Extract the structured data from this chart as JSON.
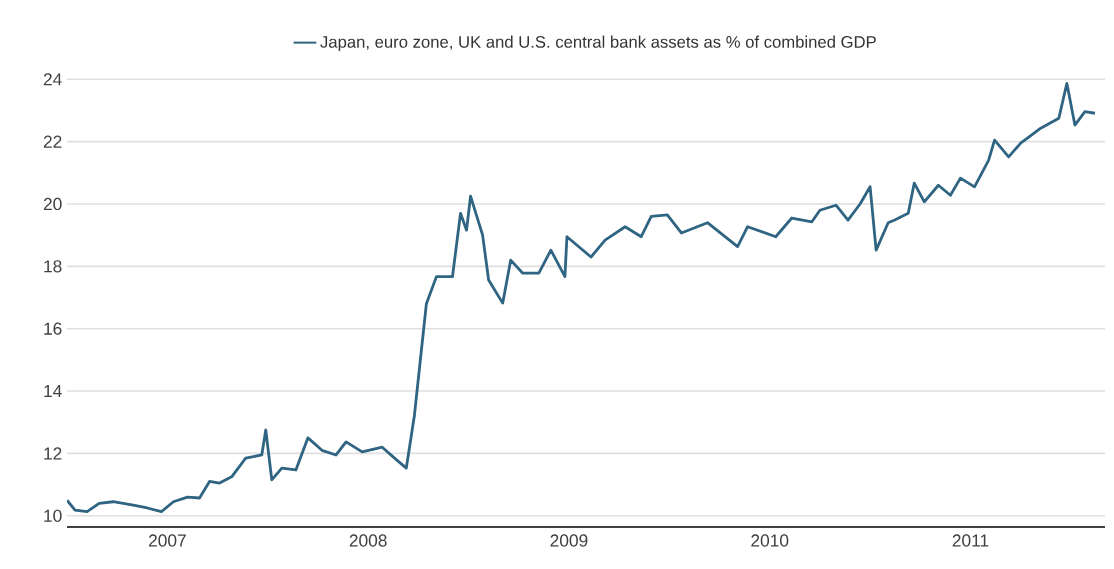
{
  "chart_data": {
    "type": "line",
    "legend": "top",
    "grid": "y",
    "marker": "none",
    "line_style": "solid",
    "xlim": [
      2007,
      2012.17
    ],
    "ylim": [
      9.64,
      24
    ],
    "xticks": [
      {
        "value": 2007,
        "label": null
      },
      {
        "value": 2007.5,
        "label": "2007"
      },
      {
        "value": 2008,
        "label": null
      },
      {
        "value": 2008.5,
        "label": "2008"
      },
      {
        "value": 2009,
        "label": null
      },
      {
        "value": 2009.5,
        "label": "2009"
      },
      {
        "value": 2010,
        "label": null
      },
      {
        "value": 2010.5,
        "label": "2010"
      },
      {
        "value": 2011,
        "label": null
      },
      {
        "value": 2011.5,
        "label": "2011"
      },
      {
        "value": 2012,
        "label": null
      }
    ],
    "yticks": [
      10,
      12,
      14,
      16,
      18,
      20,
      22,
      24
    ],
    "series": [
      {
        "name": "Japan, euro zone, UK and U.S. central bank assets as % of combined GDP",
        "color": "#2f6482",
        "x": [
          2007.0,
          2007.04,
          2007.1,
          2007.16,
          2007.23,
          2007.33,
          2007.4,
          2007.47,
          2007.53,
          2007.6,
          2007.66,
          2007.71,
          2007.76,
          2007.82,
          2007.89,
          2007.97,
          2007.99,
          2008.02,
          2008.07,
          2008.14,
          2008.2,
          2008.27,
          2008.34,
          2008.39,
          2008.47,
          2008.57,
          2008.64,
          2008.69,
          2008.73,
          2008.76,
          2008.79,
          2008.84,
          2008.92,
          2008.96,
          2008.99,
          2009.01,
          2009.07,
          2009.1,
          2009.17,
          2009.21,
          2009.27,
          2009.35,
          2009.41,
          2009.48,
          2009.49,
          2009.61,
          2009.68,
          2009.78,
          2009.86,
          2009.91,
          2009.99,
          2010.06,
          2010.19,
          2010.34,
          2010.39,
          2010.53,
          2010.61,
          2010.71,
          2010.75,
          2010.83,
          2010.89,
          2010.95,
          2011.0,
          2011.03,
          2011.09,
          2011.12,
          2011.19,
          2011.22,
          2011.27,
          2011.34,
          2011.4,
          2011.45,
          2011.52,
          2011.59,
          2011.62,
          2011.69,
          2011.75,
          2011.85,
          2011.94,
          2011.98,
          2012.02,
          2012.07,
          2012.12
        ],
        "values": [
          10.5,
          10.18,
          10.13,
          10.4,
          10.45,
          10.34,
          10.25,
          10.13,
          10.45,
          10.6,
          10.57,
          11.1,
          11.05,
          11.25,
          11.85,
          11.95,
          12.75,
          11.15,
          11.53,
          11.47,
          12.5,
          12.1,
          11.95,
          12.37,
          12.05,
          12.2,
          11.8,
          11.53,
          13.2,
          15.0,
          16.8,
          17.67,
          17.67,
          19.7,
          19.16,
          20.25,
          19.0,
          17.56,
          16.82,
          18.2,
          17.78,
          17.78,
          18.52,
          17.67,
          18.95,
          18.3,
          18.84,
          19.27,
          18.95,
          19.6,
          19.65,
          19.07,
          19.4,
          18.63,
          19.27,
          18.95,
          19.55,
          19.43,
          19.8,
          19.96,
          19.48,
          20.0,
          20.55,
          18.52,
          19.4,
          19.48,
          19.7,
          20.67,
          20.07,
          20.6,
          20.28,
          20.83,
          20.55,
          21.4,
          22.05,
          21.51,
          21.95,
          22.43,
          22.75,
          23.87,
          22.53,
          22.96,
          22.91
        ]
      }
    ]
  }
}
